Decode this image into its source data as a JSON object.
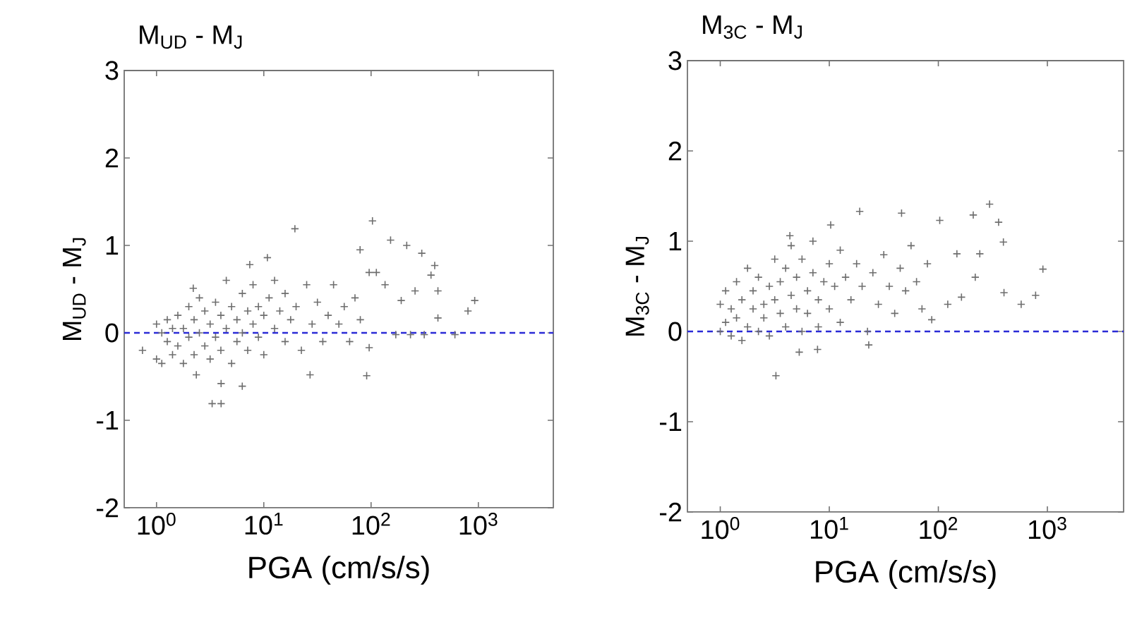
{
  "chart_data": [
    {
      "type": "scatter",
      "title": "M$_{UD}$ - M$_{J}$",
      "xlabel": "PGA (cm/s/s)",
      "ylabel": "M$_{UD}$ - M$_{J}$",
      "log": "x",
      "marker": "cross",
      "xlim": [
        0.5,
        5000
      ],
      "ylim": [
        -2,
        3
      ],
      "xticks": [
        {
          "value": 1,
          "label": "10$^{0}$"
        },
        {
          "value": 10,
          "label": "10$^{1}$"
        },
        {
          "value": 100,
          "label": "10$^{2}$"
        },
        {
          "value": 1000,
          "label": "10$^{3}$"
        }
      ],
      "yticks": [
        -2,
        -1,
        0,
        1,
        2,
        3
      ],
      "ref_lines": [
        {
          "axis": "y",
          "value": 0,
          "color": "#2b2bd6",
          "line_style": "dashed"
        }
      ],
      "series": [
        {
          "color": "#6e6e6e",
          "x": [
            103,
            19.5,
            79,
            152,
            215,
            297,
            392,
            362,
            420,
            925,
            800,
            605,
            420,
            313,
            233,
            170,
            91,
            96,
            96,
            112,
            135,
            257,
            191,
            10.8,
            7.4,
            3.3,
            4.0,
            6.3,
            4.0,
            2.2,
            0.74,
            27,
            2.35,
            1,
            1,
            1.12,
            1.12,
            1.26,
            1.26,
            1.41,
            1.41,
            1.58,
            1.58,
            1.78,
            1.78,
            2.0,
            2.0,
            2.24,
            2.24,
            2.51,
            2.51,
            2.82,
            2.82,
            3.16,
            3.16,
            3.55,
            3.55,
            3.98,
            3.98,
            4.47,
            4.47,
            5.01,
            5.01,
            5.62,
            5.62,
            6.31,
            6.31,
            7.08,
            7.08,
            7.94,
            7.94,
            8.91,
            8.91,
            10,
            10,
            11.2,
            12.6,
            12.6,
            14.1,
            15.8,
            15.8,
            17.8,
            20,
            22.4,
            25.1,
            28.2,
            31.6,
            35.5,
            39.8,
            44.7,
            50.1,
            56.2,
            63.1,
            70.8,
            79.4
          ],
          "values": [
            1.28,
            1.19,
            0.95,
            1.06,
            1.0,
            0.91,
            0.77,
            0.66,
            0.48,
            0.37,
            0.25,
            -0.02,
            0.17,
            -0.02,
            -0.02,
            -0.02,
            -0.49,
            -0.17,
            0.69,
            0.69,
            0.55,
            0.48,
            0.37,
            0.86,
            0.78,
            -0.81,
            -0.81,
            -0.61,
            -0.58,
            0.51,
            -0.2,
            -0.48,
            -0.48,
            0.1,
            -0.3,
            -0.35,
            0.0,
            0.15,
            -0.1,
            -0.25,
            0.05,
            0.2,
            -0.15,
            -0.35,
            0.05,
            0.3,
            -0.05,
            0.15,
            -0.25,
            0.4,
            0.0,
            -0.15,
            0.25,
            0.1,
            -0.3,
            0.35,
            -0.05,
            0.2,
            -0.2,
            0.6,
            0.05,
            0.3,
            -0.35,
            0.15,
            -0.1,
            0.45,
            0.0,
            0.25,
            -0.2,
            0.1,
            0.55,
            -0.05,
            0.3,
            0.2,
            -0.25,
            0.4,
            0.05,
            0.6,
            0.25,
            -0.1,
            0.45,
            0.15,
            0.3,
            -0.2,
            0.55,
            0.1,
            0.35,
            -0.1,
            0.2,
            0.55,
            0.1,
            0.3,
            -0.1,
            0.4,
            0.15
          ]
        }
      ]
    },
    {
      "type": "scatter",
      "title": "M$_{3C}$ - M$_{J}$",
      "xlabel": "PGA (cm/s/s)",
      "ylabel": "M$_{3C}$ - M$_{J}$",
      "log": "x",
      "marker": "cross",
      "xlim": [
        0.5,
        5000
      ],
      "ylim": [
        -2,
        3
      ],
      "xticks": [
        {
          "value": 1,
          "label": "10$^{0}$"
        },
        {
          "value": 10,
          "label": "10$^{1}$"
        },
        {
          "value": 100,
          "label": "10$^{2}$"
        },
        {
          "value": 1000,
          "label": "10$^{3}$"
        }
      ],
      "yticks": [
        -2,
        -1,
        0,
        1,
        2,
        3
      ],
      "ref_lines": [
        {
          "axis": "y",
          "value": 0,
          "color": "#2b2bd6",
          "line_style": "dashed"
        }
      ],
      "series": [
        {
          "color": "#6e6e6e",
          "x": [
            295,
            357,
            395,
            910,
            780,
            575,
            400,
            209,
            103,
            46,
            19,
            10.3,
            4.35,
            3.24,
            7.8,
            5.3,
            23,
            87,
            122,
            163,
            218,
            148,
            240,
            1,
            1,
            1.12,
            1.12,
            1.26,
            1.26,
            1.41,
            1.41,
            1.58,
            1.58,
            1.78,
            1.78,
            2.0,
            2.0,
            2.24,
            2.24,
            2.51,
            2.51,
            2.82,
            2.82,
            3.16,
            3.16,
            3.55,
            3.55,
            3.98,
            3.98,
            4.47,
            4.47,
            5.01,
            5.01,
            5.62,
            5.62,
            6.31,
            6.31,
            7.08,
            7.08,
            7.94,
            7.94,
            8.91,
            10,
            10,
            11.2,
            12.6,
            12.6,
            14.1,
            15.8,
            17.8,
            20,
            22.4,
            25.1,
            28.2,
            31.6,
            35.5,
            39.8,
            44.7,
            50.1,
            56.2,
            63.1,
            70.8,
            79.4
          ],
          "values": [
            1.41,
            1.21,
            0.99,
            0.69,
            0.4,
            0.3,
            0.43,
            1.29,
            1.23,
            1.31,
            1.33,
            1.18,
            1.06,
            -0.49,
            -0.2,
            -0.23,
            -0.15,
            0.13,
            0.3,
            0.38,
            0.6,
            0.86,
            0.86,
            0.3,
            0.0,
            0.45,
            0.1,
            -0.05,
            0.25,
            0.15,
            0.55,
            0.35,
            -0.1,
            0.05,
            0.7,
            0.25,
            0.45,
            0.0,
            0.6,
            0.3,
            0.15,
            0.5,
            -0.05,
            0.35,
            0.8,
            0.2,
            0.55,
            0.05,
            0.7,
            0.4,
            0.95,
            0.25,
            0.6,
            0.0,
            0.8,
            0.45,
            0.2,
            0.65,
            1.0,
            0.35,
            0.05,
            0.55,
            0.75,
            0.25,
            0.5,
            0.9,
            0.1,
            0.6,
            0.35,
            0.75,
            0.5,
            0.0,
            0.65,
            0.3,
            0.85,
            0.5,
            0.2,
            0.7,
            0.45,
            0.95,
            0.55,
            0.25,
            0.75
          ]
        }
      ]
    }
  ]
}
